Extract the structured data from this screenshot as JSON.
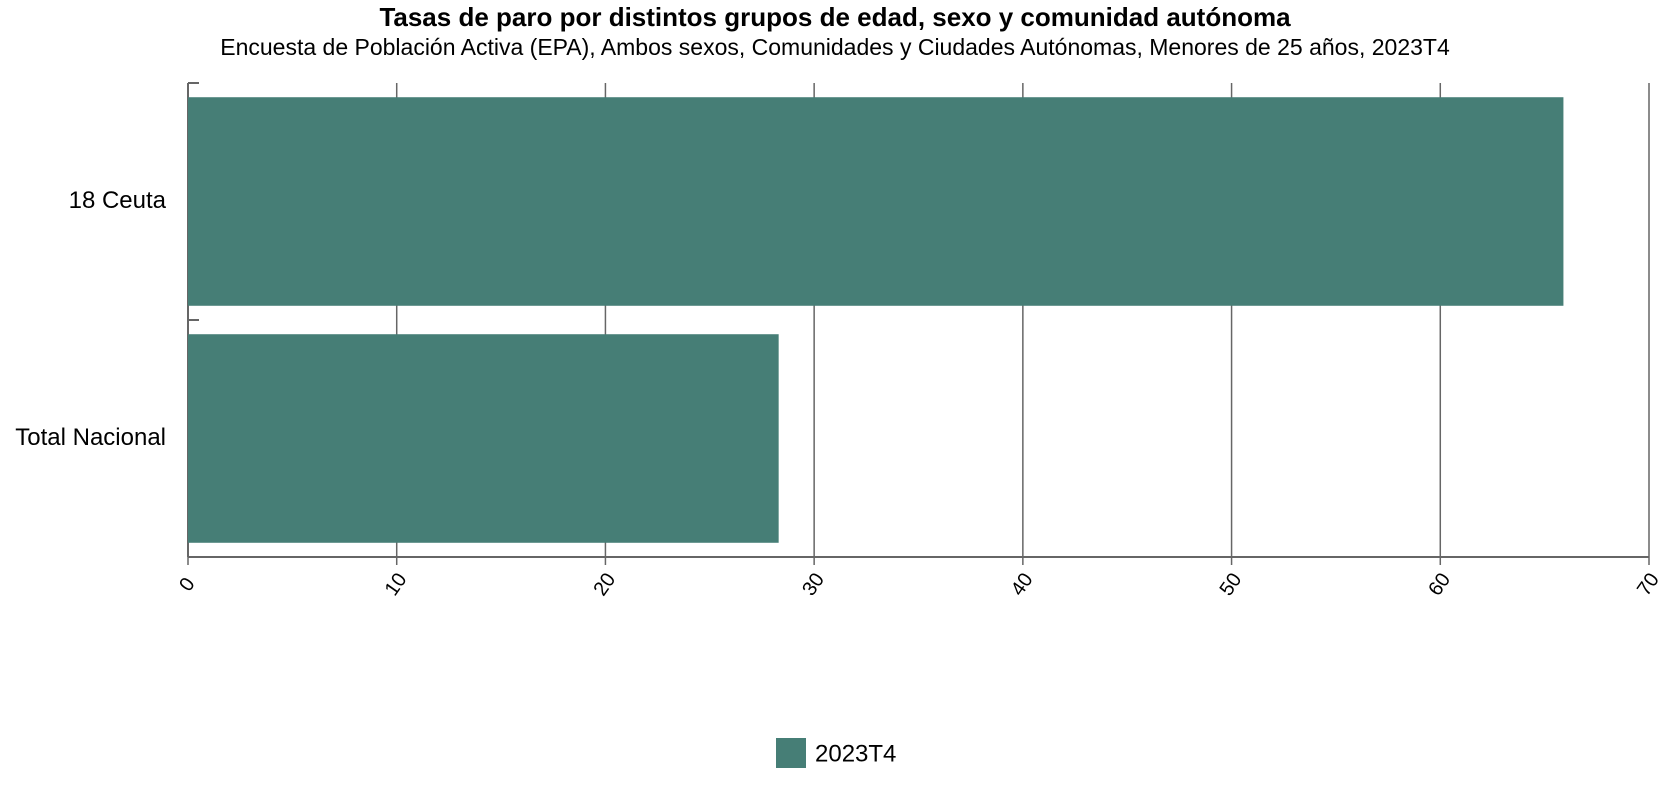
{
  "chart_data": {
    "type": "hbar",
    "title": "Tasas de paro por distintos grupos de edad, sexo y comunidad autónoma",
    "subtitle": "Encuesta de Población Activa (EPA), Ambos sexos, Comunidades y Ciudades Autónomas, Menores de 25 años, 2023T4",
    "categories": [
      "18 Ceuta",
      "Total Nacional"
    ],
    "series": [
      {
        "name": "2023T4",
        "color": "#467e76",
        "values": [
          65.9,
          28.3
        ]
      }
    ],
    "xlim": [
      0,
      70
    ],
    "xticks": [
      0,
      10,
      20,
      30,
      40,
      50,
      60,
      70
    ],
    "grid": true,
    "legend": "bottom"
  }
}
